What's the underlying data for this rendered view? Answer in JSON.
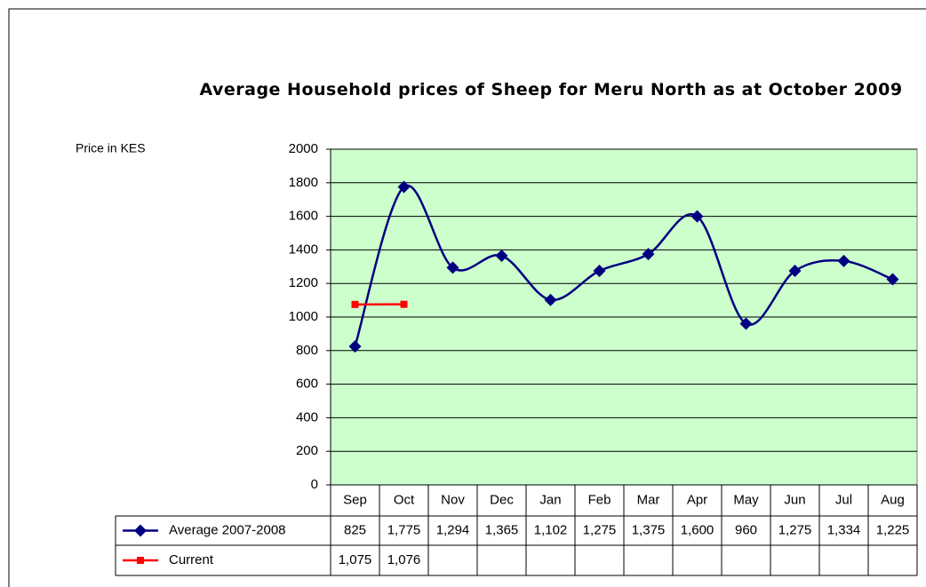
{
  "chart_data": {
    "type": "line",
    "title": "Average Household prices of Sheep for Meru North as at October 2009",
    "y_label": "Price in KES",
    "categories": [
      "Sep",
      "Oct",
      "Nov",
      "Dec",
      "Jan",
      "Feb",
      "Mar",
      "Apr",
      "May",
      "Jun",
      "Jul",
      "Aug"
    ],
    "series": [
      {
        "name": "Average 2007-2008",
        "color": "#000080",
        "values": [
          825,
          1775,
          1294,
          1365,
          1102,
          1275,
          1375,
          1600,
          960,
          1275,
          1334,
          1225
        ],
        "value_labels": [
          "825",
          "1,775",
          "1,294",
          "1,365",
          "1,102",
          "1,275",
          "1,375",
          "1,600",
          "960",
          "1,275",
          "1,334",
          "1,225"
        ]
      },
      {
        "name": "Current",
        "color": "#ff0000",
        "values": [
          1075,
          1076,
          null,
          null,
          null,
          null,
          null,
          null,
          null,
          null,
          null,
          null
        ],
        "value_labels": [
          "1,075",
          "1,076",
          null,
          null,
          null,
          null,
          null,
          null,
          null,
          null,
          null,
          null
        ]
      }
    ],
    "ylim": [
      0,
      2000
    ],
    "yticks": [
      0,
      200,
      400,
      600,
      800,
      1000,
      1200,
      1400,
      1600,
      1800,
      2000
    ],
    "grid": true,
    "background": "#ccffcc"
  }
}
